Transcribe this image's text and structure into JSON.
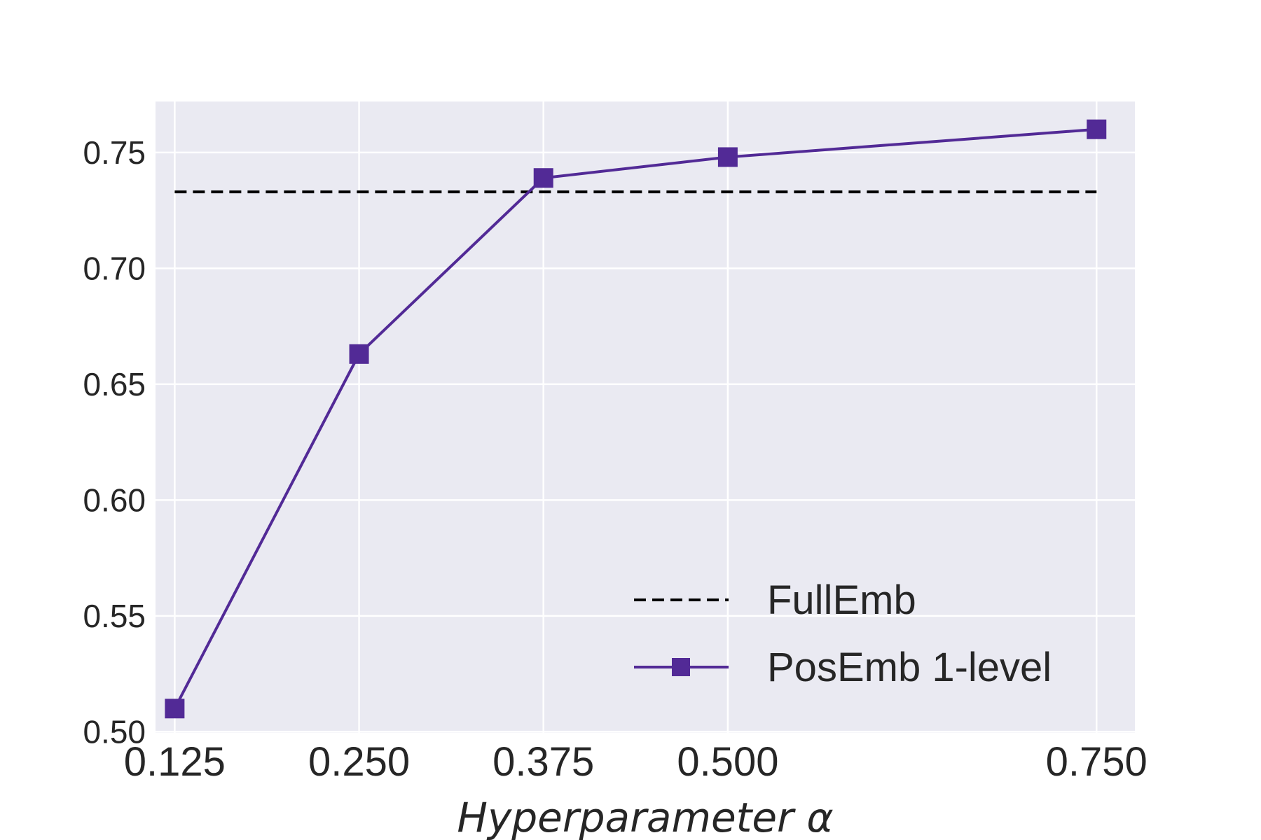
{
  "chart_data": {
    "type": "line",
    "xlabel": "Hyperparameter α",
    "ylabel": "",
    "title": "",
    "x_ticks": [
      "0.125",
      "0.250",
      "0.375",
      "0.500",
      "0.750"
    ],
    "y_ticks": [
      "0.50",
      "0.55",
      "0.60",
      "0.65",
      "0.70",
      "0.75"
    ],
    "xlim": [
      0.112,
      0.776
    ],
    "ylim": [
      0.4995,
      0.772
    ],
    "grid": true,
    "legend_position": "lower-right",
    "series": [
      {
        "name": "FullEmb",
        "style": "dashed",
        "color": "#000000",
        "x": [
          0.125,
          0.75
        ],
        "y": [
          0.733,
          0.733
        ]
      },
      {
        "name": "PosEmb 1-level",
        "style": "solid",
        "marker": "square",
        "color": "#522a96",
        "x": [
          0.125,
          0.25,
          0.375,
          0.5,
          0.75
        ],
        "y": [
          0.51,
          0.663,
          0.739,
          0.748,
          0.76
        ]
      }
    ]
  },
  "colors": {
    "plot_background": "#eaeaf2",
    "grid": "#ffffff",
    "text": "#262626"
  }
}
